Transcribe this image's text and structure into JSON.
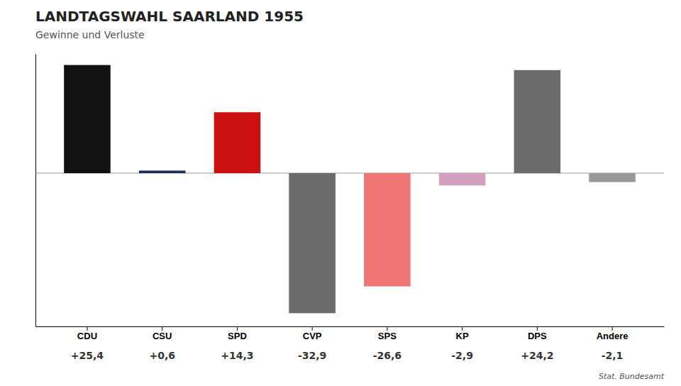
{
  "chart_data": {
    "type": "bar",
    "title": "LANDTAGSWAHL SAARLAND 1955",
    "subtitle": "Gewinne und Verluste",
    "categories": [
      "CDU",
      "CSU",
      "SPD",
      "CVP",
      "SPS",
      "KP",
      "DPS",
      "Andere"
    ],
    "values": [
      25.4,
      0.6,
      14.3,
      -32.9,
      -26.6,
      -2.9,
      24.2,
      -2.1
    ],
    "value_labels": [
      "+25,4",
      "+0,6",
      "+14,3",
      "-32,9",
      "-26,6",
      "-2,9",
      "+24,2",
      "-2,1"
    ],
    "colors": [
      "#111111",
      "#1e2d5c",
      "#cc1111",
      "#6b6b6b",
      "#f07575",
      "#d4a0c0",
      "#6b6b6b",
      "#999999"
    ],
    "ylim": [
      -36,
      28
    ],
    "data_labels": true,
    "tick_labels": "x",
    "grid": false,
    "annotations": [
      "Stat. Bundesamt"
    ]
  }
}
